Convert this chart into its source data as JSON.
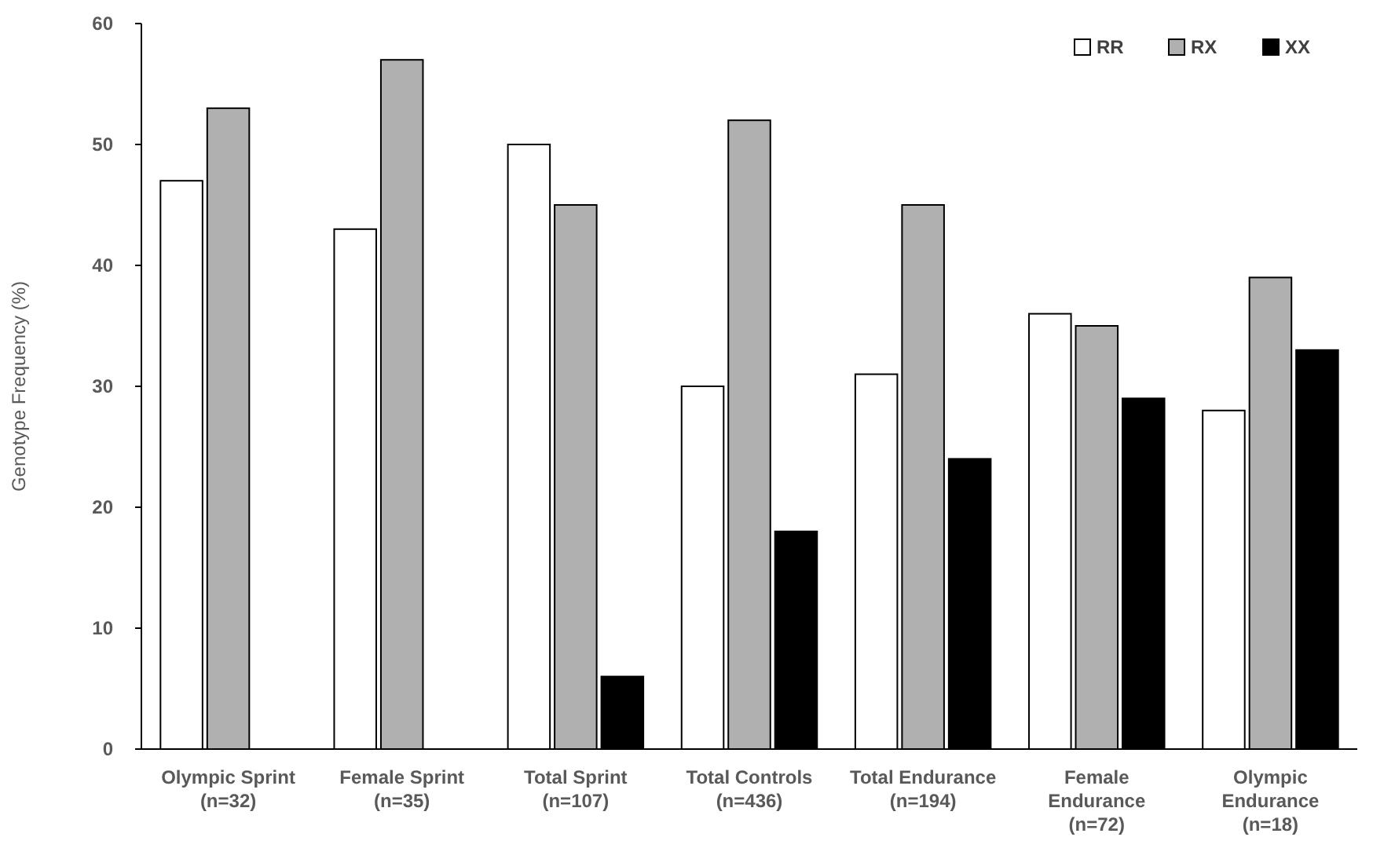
{
  "chart_data": {
    "type": "bar",
    "ylabel": "Genotype Frequency (%)",
    "categories": [
      "Olympic Sprint\n(n=32)",
      "Female Sprint\n(n=35)",
      "Total Sprint\n(n=107)",
      "Total Controls\n(n=436)",
      "Total Endurance\n(n=194)",
      "Female\nEndurance\n(n=72)",
      "Olympic\nEndurance\n(n=18)"
    ],
    "series": [
      {
        "name": "RR",
        "color": "#ffffff",
        "values": [
          47,
          43,
          50,
          30,
          31,
          36,
          28
        ]
      },
      {
        "name": "RX",
        "color": "#b0b0b0",
        "values": [
          53,
          57,
          45,
          52,
          45,
          35,
          39
        ]
      },
      {
        "name": "XX",
        "color": "#000000",
        "values": [
          0,
          0,
          6,
          18,
          24,
          29,
          33
        ]
      }
    ],
    "ylim": [
      0,
      60
    ],
    "yticks": [
      0,
      10,
      20,
      30,
      40,
      50,
      60
    ],
    "grid": false,
    "legend": "top right"
  }
}
